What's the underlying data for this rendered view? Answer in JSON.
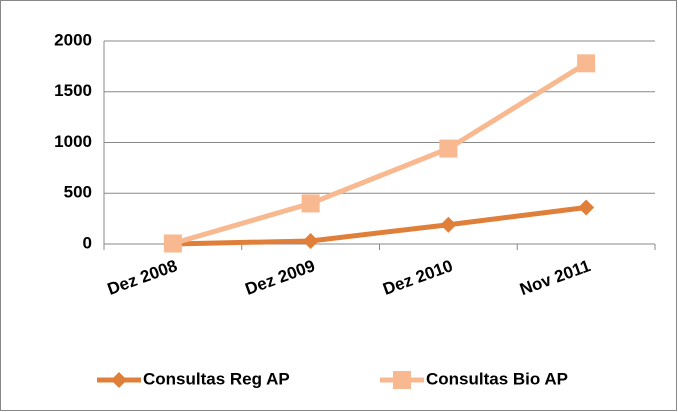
{
  "chart_data": {
    "type": "line",
    "categories": [
      "Dez 2008",
      "Dez 2009",
      "Dez 2010",
      "Nov 2011"
    ],
    "series": [
      {
        "name": "Consultas Reg AP",
        "color": "#e07f3a",
        "values": [
          0,
          30,
          190,
          360
        ]
      },
      {
        "name": "Consultas Bio AP",
        "color": "#f8b890",
        "values": [
          5,
          400,
          940,
          1780
        ]
      }
    ],
    "ylim": [
      0,
      2000
    ],
    "yticks": [
      0,
      500,
      1000,
      1500,
      2000
    ],
    "grid": true,
    "legend": "bottom"
  }
}
